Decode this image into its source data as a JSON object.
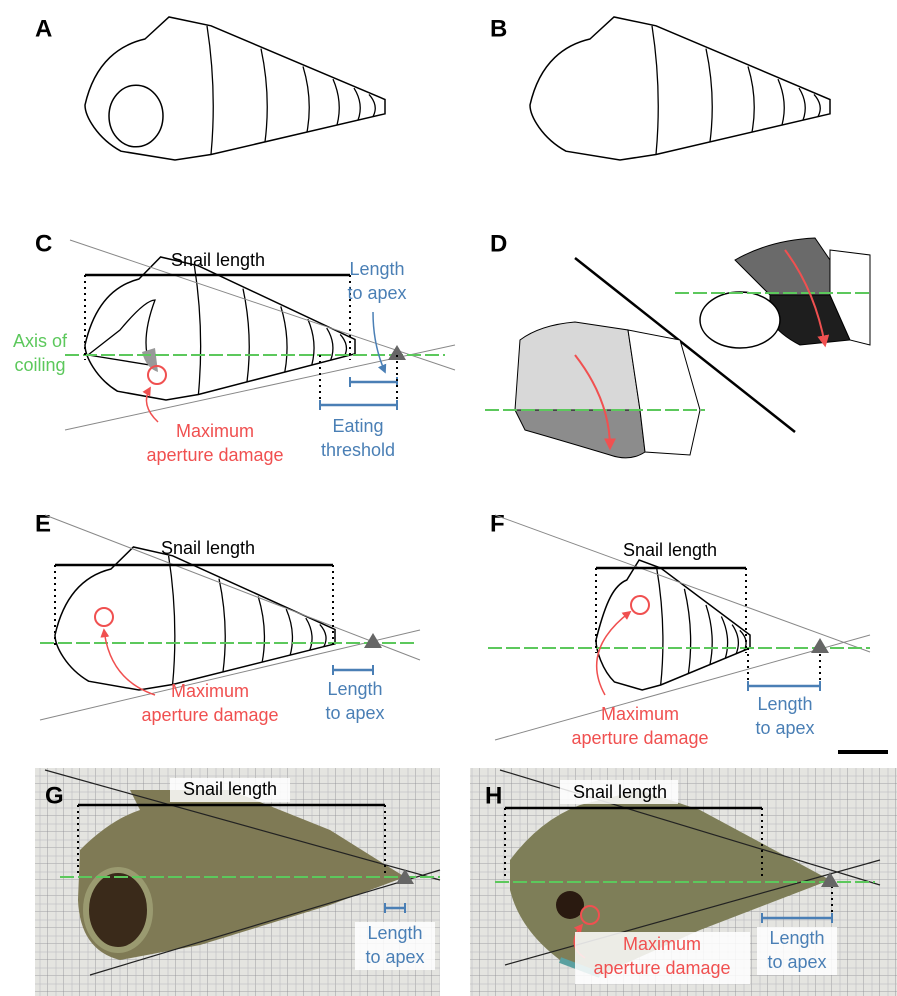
{
  "panels": [
    {
      "letter": "A"
    },
    {
      "letter": "B"
    },
    {
      "letter": "C",
      "snail_length": "Snail length",
      "length_to_apex": [
        "Length",
        "to apex"
      ],
      "axis_of_coiling": [
        "Axis of",
        "coiling"
      ],
      "max_damage": [
        "Maximum",
        "aperture damage"
      ],
      "eating_threshold": [
        "Eating",
        "threshold"
      ]
    },
    {
      "letter": "D"
    },
    {
      "letter": "E",
      "snail_length": "Snail length",
      "length_to_apex": [
        "Length",
        "to apex"
      ],
      "max_damage": [
        "Maximum",
        "aperture damage"
      ]
    },
    {
      "letter": "F",
      "snail_length": "Snail length",
      "length_to_apex": [
        "Length",
        "to apex"
      ],
      "max_damage": [
        "Maximum",
        "aperture damage"
      ]
    },
    {
      "letter": "G",
      "snail_length": "Snail length",
      "length_to_apex": [
        "Length",
        "to apex"
      ]
    },
    {
      "letter": "H",
      "snail_length": "Snail length",
      "length_to_apex": [
        "Length",
        "to apex"
      ],
      "max_damage": [
        "Maximum",
        "aperture damage"
      ]
    }
  ]
}
